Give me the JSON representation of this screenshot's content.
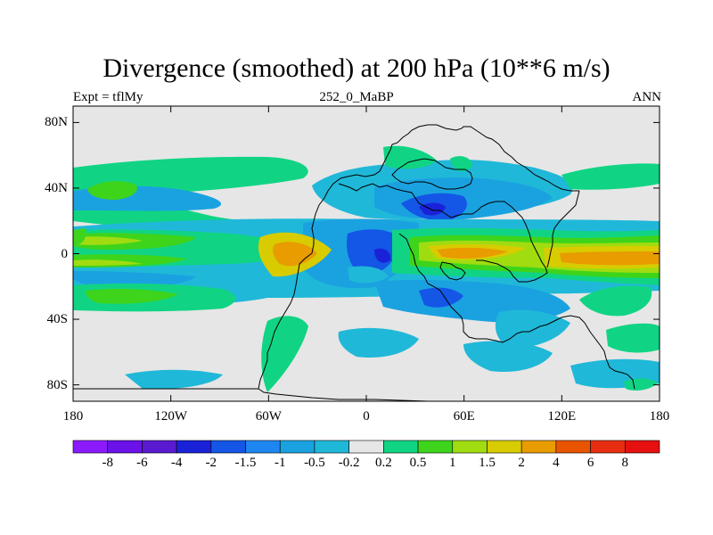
{
  "chart_data": {
    "type": "heatmap",
    "title": "Divergence (smoothed) at 200 hPa (10**6 m/s)",
    "left_label": "Expt = tflMy",
    "center_label": "252_0_MaBP",
    "right_label": "ANN",
    "x_range": [
      -180,
      180
    ],
    "y_range": [
      -90,
      90
    ],
    "lat_ticks": [
      {
        "value": 80,
        "label": "80N"
      },
      {
        "value": 40,
        "label": "40N"
      },
      {
        "value": 0,
        "label": "0"
      },
      {
        "value": -40,
        "label": "40S"
      },
      {
        "value": -80,
        "label": "80S"
      }
    ],
    "lon_ticks": [
      {
        "value": -180,
        "label": "180"
      },
      {
        "value": -120,
        "label": "120W"
      },
      {
        "value": -60,
        "label": "60W"
      },
      {
        "value": 0,
        "label": "0"
      },
      {
        "value": 60,
        "label": "60E"
      },
      {
        "value": 120,
        "label": "120E"
      },
      {
        "value": 180,
        "label": "180"
      }
    ],
    "colorbar": {
      "labels": [
        "-8",
        "-6",
        "-4",
        "-2",
        "-1.5",
        "-1",
        "-0.5",
        "-0.2",
        "0.2",
        "0.5",
        "1",
        "1.5",
        "2",
        "4",
        "6",
        "8"
      ],
      "colors": [
        "#8c1aff",
        "#6a12e8",
        "#5a1ad0",
        "#1a22d8",
        "#1456e6",
        "#1e86f0",
        "#1aa2e0",
        "#20b8d8",
        "#e6e6e6",
        "#10d484",
        "#3ed41c",
        "#a0dc10",
        "#d8cc00",
        "#e89c00",
        "#e85400",
        "#e82e10",
        "#e61010"
      ]
    },
    "background_color": "#e6e6e6"
  }
}
